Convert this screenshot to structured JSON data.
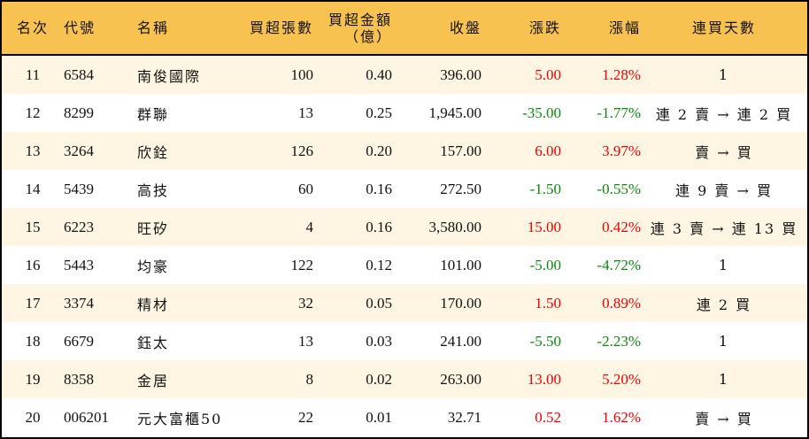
{
  "headers": {
    "rank": "名次",
    "code": "代號",
    "name": "名稱",
    "lots": "買超張數",
    "amount": "買超金額",
    "amount_unit": "（億）",
    "close": "收盤",
    "change": "漲跌",
    "pct": "漲幅",
    "days": "連買天數"
  },
  "colors": {
    "header_bg": "#F8C250",
    "odd_row_bg": "#FEF6E3",
    "up": "#F00000",
    "down": "#0A8A0A"
  },
  "rows": [
    {
      "rank": "11",
      "code": "6584",
      "name": "南俊國際",
      "lots": "100",
      "amount": "0.40",
      "close": "396.00",
      "change": "5.00",
      "pct": "1.28%",
      "days": "1",
      "dir": "up"
    },
    {
      "rank": "12",
      "code": "8299",
      "name": "群聯",
      "lots": "13",
      "amount": "0.25",
      "close": "1,945.00",
      "change": "-35.00",
      "pct": "-1.77%",
      "days": "連 2 賣 → 連 2 買",
      "dir": "down"
    },
    {
      "rank": "13",
      "code": "3264",
      "name": "欣銓",
      "lots": "126",
      "amount": "0.20",
      "close": "157.00",
      "change": "6.00",
      "pct": "3.97%",
      "days": "賣 → 買",
      "dir": "up"
    },
    {
      "rank": "14",
      "code": "5439",
      "name": "高技",
      "lots": "60",
      "amount": "0.16",
      "close": "272.50",
      "change": "-1.50",
      "pct": "-0.55%",
      "days": "連 9 賣 → 買",
      "dir": "down"
    },
    {
      "rank": "15",
      "code": "6223",
      "name": "旺矽",
      "lots": "4",
      "amount": "0.16",
      "close": "3,580.00",
      "change": "15.00",
      "pct": "0.42%",
      "days": "連 3 賣 → 連 13 買",
      "dir": "up"
    },
    {
      "rank": "16",
      "code": "5443",
      "name": "均豪",
      "lots": "122",
      "amount": "0.12",
      "close": "101.00",
      "change": "-5.00",
      "pct": "-4.72%",
      "days": "1",
      "dir": "down"
    },
    {
      "rank": "17",
      "code": "3374",
      "name": "精材",
      "lots": "32",
      "amount": "0.05",
      "close": "170.00",
      "change": "1.50",
      "pct": "0.89%",
      "days": "連 2 買",
      "dir": "up"
    },
    {
      "rank": "18",
      "code": "6679",
      "name": "鈺太",
      "lots": "13",
      "amount": "0.03",
      "close": "241.00",
      "change": "-5.50",
      "pct": "-2.23%",
      "days": "1",
      "dir": "down"
    },
    {
      "rank": "19",
      "code": "8358",
      "name": "金居",
      "lots": "8",
      "amount": "0.02",
      "close": "263.00",
      "change": "13.00",
      "pct": "5.20%",
      "days": "1",
      "dir": "up"
    },
    {
      "rank": "20",
      "code": "006201",
      "name": "元大富櫃50",
      "lots": "22",
      "amount": "0.01",
      "close": "32.71",
      "change": "0.52",
      "pct": "1.62%",
      "days": "賣 → 買",
      "dir": "up"
    }
  ]
}
